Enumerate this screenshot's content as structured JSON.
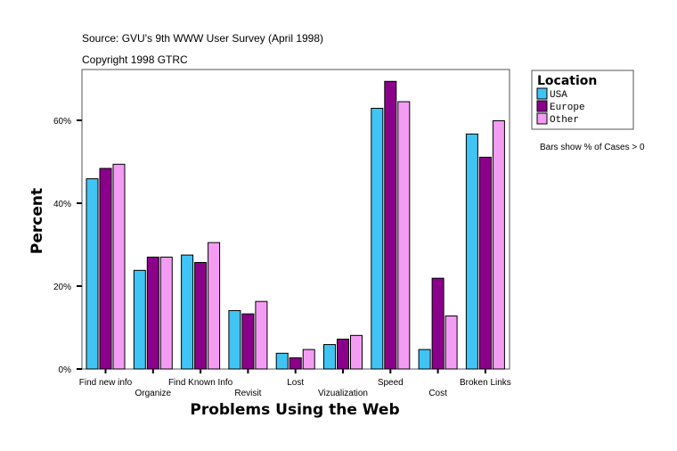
{
  "chart_data": {
    "type": "bar",
    "title": "Source: GVU's 9th WWW User Survey (April 1998)",
    "subtitle": "Copyright 1998 GTRC",
    "xlabel": "Problems Using the Web",
    "ylabel": "Percent",
    "ylim": [
      0,
      72
    ],
    "yticks": [
      0,
      20,
      40,
      60
    ],
    "ytick_labels": [
      "0%",
      "20%",
      "40%",
      "60%"
    ],
    "grid": false,
    "categories": [
      "Find new info",
      "Organize",
      "Find Known Info",
      "Revisit",
      "Lost",
      "Vizualization",
      "Speed",
      "Cost",
      "Broken Links"
    ],
    "series": [
      {
        "name": "USA",
        "color": "#40c4f4",
        "values": [
          45.9,
          23.8,
          27.5,
          14.1,
          3.8,
          5.9,
          62.9,
          4.7,
          56.7
        ]
      },
      {
        "name": "Europe",
        "color": "#8b008b",
        "values": [
          48.4,
          27.0,
          25.7,
          13.3,
          2.7,
          7.2,
          69.4,
          21.9,
          51.1
        ]
      },
      {
        "name": "Other",
        "color": "#f49cf4",
        "values": [
          49.4,
          27.0,
          30.5,
          16.3,
          4.7,
          8.1,
          64.5,
          12.8,
          59.9
        ]
      }
    ],
    "legend": {
      "title": "Location",
      "placement": "right"
    },
    "annotation": "Bars show % of Cases > 0"
  }
}
